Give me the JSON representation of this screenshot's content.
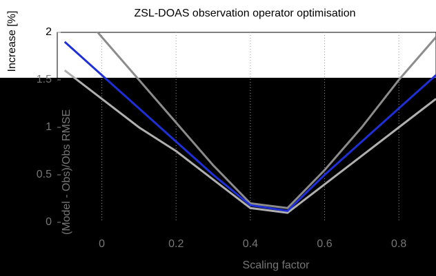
{
  "chart_data": {
    "type": "line",
    "title": "ZSL-DOAS observation operator optimisation",
    "xlabel": "Scaling factor",
    "ylabel": "Increase [%]",
    "ylabel2": "(Model - Obs)/Obs RMSE",
    "x": [
      -0.1,
      0,
      0.1,
      0.2,
      0.3,
      0.4,
      0.5,
      0.6,
      0.7,
      0.8,
      0.9
    ],
    "series": [
      {
        "color": "#8c8c8c",
        "values": [
          2.4,
          1.95,
          1.5,
          1.05,
          0.6,
          0.2,
          0.15,
          0.55,
          1.0,
          1.5,
          1.95
        ]
      },
      {
        "color": "#b0b0b0",
        "values": [
          1.6,
          1.3,
          1.0,
          0.75,
          0.45,
          0.15,
          0.1,
          0.4,
          0.7,
          1.0,
          1.3
        ]
      },
      {
        "color": "#1f2fd6",
        "values": [
          1.9,
          1.55,
          1.2,
          0.85,
          0.5,
          0.18,
          0.12,
          0.5,
          0.85,
          1.2,
          1.55
        ]
      }
    ],
    "xlim": [
      -0.12,
      0.9
    ],
    "ylim": [
      0,
      2
    ],
    "xticks": [
      0,
      0.2,
      0.4,
      0.6,
      0.8
    ],
    "yticks": [
      0,
      0.5,
      1,
      1.5,
      2
    ],
    "grid": true
  }
}
